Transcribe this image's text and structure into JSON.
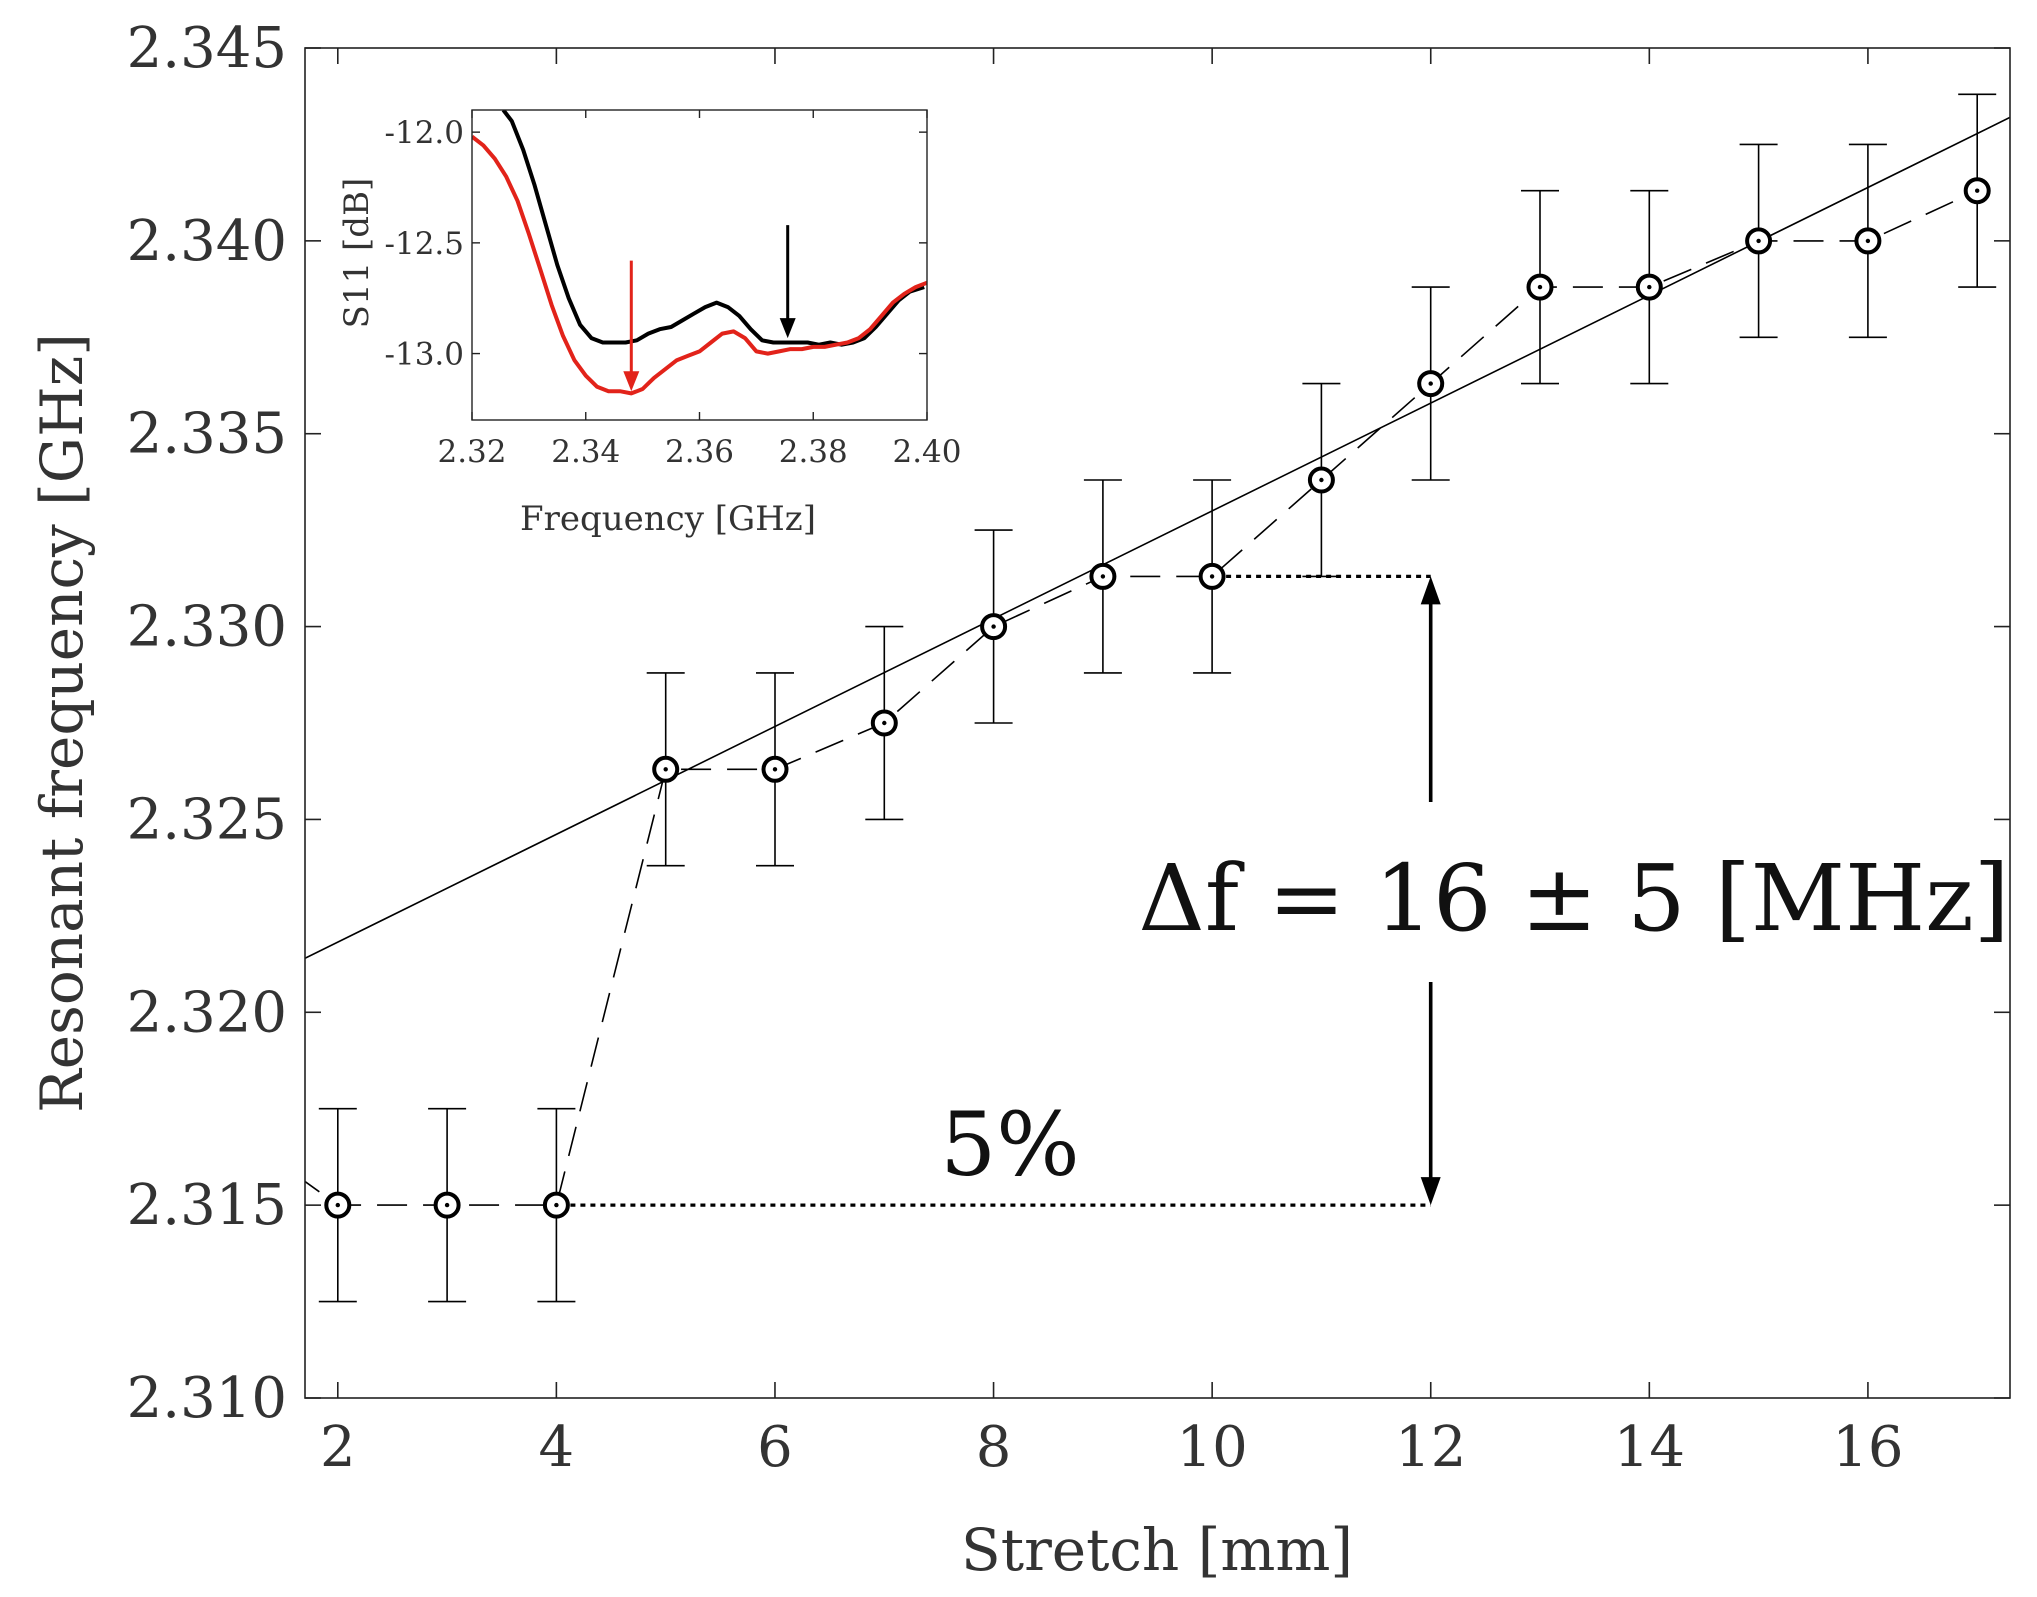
{
  "chart_data": [
    {
      "type": "scatter",
      "role": "main",
      "xlabel": "Stretch [mm]",
      "ylabel": "Resonant frequency [GHz]",
      "xlim": [
        1.7,
        17.3
      ],
      "ylim": [
        2.31,
        2.345
      ],
      "x_ticks": [
        2,
        4,
        6,
        8,
        10,
        12,
        14,
        16
      ],
      "x_tick_labels": [
        "2",
        "4",
        "6",
        "8",
        "10",
        "12",
        "14",
        "16"
      ],
      "y_ticks": [
        2.31,
        2.315,
        2.32,
        2.325,
        2.33,
        2.335,
        2.34,
        2.345
      ],
      "y_tick_labels": [
        "2.310",
        "2.315",
        "2.320",
        "2.325",
        "2.330",
        "2.335",
        "2.340",
        "2.345"
      ],
      "series": [
        {
          "name": "measured",
          "style": "dashed line with circle markers and error bars",
          "x": [
            2,
            3,
            4,
            5,
            6,
            7,
            8,
            9,
            10,
            11,
            12,
            13,
            14,
            15,
            16,
            17
          ],
          "y": [
            2.315,
            2.315,
            2.315,
            2.3263,
            2.3263,
            2.3275,
            2.33,
            2.3313,
            2.3313,
            2.3338,
            2.3363,
            2.3388,
            2.3388,
            2.34,
            2.34,
            2.3413
          ],
          "err": 0.0025
        },
        {
          "name": "linear fit",
          "style": "solid line",
          "x": [
            1.7,
            17.3
          ],
          "y": [
            2.3214,
            2.3432
          ]
        }
      ],
      "annotations": {
        "delta_f_label": "Δf = 16 ± 5 [MHz]",
        "percent_label": "5%",
        "bracket_x": 12,
        "bracket_y_low": 2.315,
        "bracket_y_high": 2.3313
      }
    },
    {
      "type": "line",
      "role": "inset",
      "xlabel": "Frequency [GHz]",
      "ylabel": "S11 [dB]",
      "xlim": [
        2.32,
        2.4
      ],
      "ylim": [
        -13.3,
        -11.9
      ],
      "x_ticks": [
        2.32,
        2.34,
        2.36,
        2.38,
        2.4
      ],
      "x_tick_labels": [
        "2.32",
        "2.34",
        "2.36",
        "2.38",
        "2.40"
      ],
      "y_ticks": [
        -12.0,
        -12.5,
        -13.0
      ],
      "y_tick_labels": [
        "-12.0",
        "-12.5",
        "-13.0"
      ],
      "series": [
        {
          "name": "black",
          "color": "#000000",
          "x": [
            2.3255,
            2.327,
            2.329,
            2.331,
            2.333,
            2.335,
            2.337,
            2.339,
            2.341,
            2.343,
            2.345,
            2.347,
            2.349,
            2.351,
            2.353,
            2.355,
            2.357,
            2.359,
            2.361,
            2.363,
            2.365,
            2.367,
            2.369,
            2.371,
            2.373,
            2.375,
            2.377,
            2.379,
            2.381,
            2.383,
            2.385,
            2.387,
            2.389,
            2.391,
            2.393,
            2.395,
            2.397,
            2.3995
          ],
          "y": [
            -11.9,
            -11.95,
            -12.08,
            -12.24,
            -12.42,
            -12.6,
            -12.75,
            -12.87,
            -12.93,
            -12.95,
            -12.95,
            -12.95,
            -12.94,
            -12.91,
            -12.89,
            -12.88,
            -12.85,
            -12.82,
            -12.79,
            -12.77,
            -12.79,
            -12.83,
            -12.89,
            -12.94,
            -12.95,
            -12.95,
            -12.95,
            -12.95,
            -12.96,
            -12.95,
            -12.96,
            -12.95,
            -12.93,
            -12.88,
            -12.82,
            -12.76,
            -12.72,
            -12.7
          ]
        },
        {
          "name": "red",
          "color": "#e2231a",
          "x": [
            2.32,
            2.322,
            2.324,
            2.326,
            2.328,
            2.33,
            2.332,
            2.334,
            2.336,
            2.338,
            2.34,
            2.342,
            2.344,
            2.346,
            2.348,
            2.35,
            2.352,
            2.354,
            2.356,
            2.358,
            2.36,
            2.362,
            2.364,
            2.366,
            2.368,
            2.37,
            2.372,
            2.374,
            2.376,
            2.378,
            2.38,
            2.382,
            2.384,
            2.386,
            2.388,
            2.39,
            2.392,
            2.394,
            2.396,
            2.398,
            2.4
          ],
          "y": [
            -12.02,
            -12.06,
            -12.12,
            -12.2,
            -12.31,
            -12.46,
            -12.62,
            -12.78,
            -12.92,
            -13.03,
            -13.1,
            -13.15,
            -13.17,
            -13.17,
            -13.18,
            -13.16,
            -13.11,
            -13.07,
            -13.03,
            -13.01,
            -12.99,
            -12.95,
            -12.91,
            -12.9,
            -12.93,
            -12.99,
            -13.0,
            -12.99,
            -12.98,
            -12.98,
            -12.97,
            -12.97,
            -12.96,
            -12.95,
            -12.93,
            -12.89,
            -12.83,
            -12.77,
            -12.73,
            -12.7,
            -12.68
          ]
        }
      ],
      "arrows": [
        {
          "color": "#e2231a",
          "x": 2.348,
          "y_from": -12.58,
          "y_to": -13.17
        },
        {
          "color": "#000000",
          "x": 2.3755,
          "y_from": -12.42,
          "y_to": -12.93
        }
      ]
    }
  ]
}
